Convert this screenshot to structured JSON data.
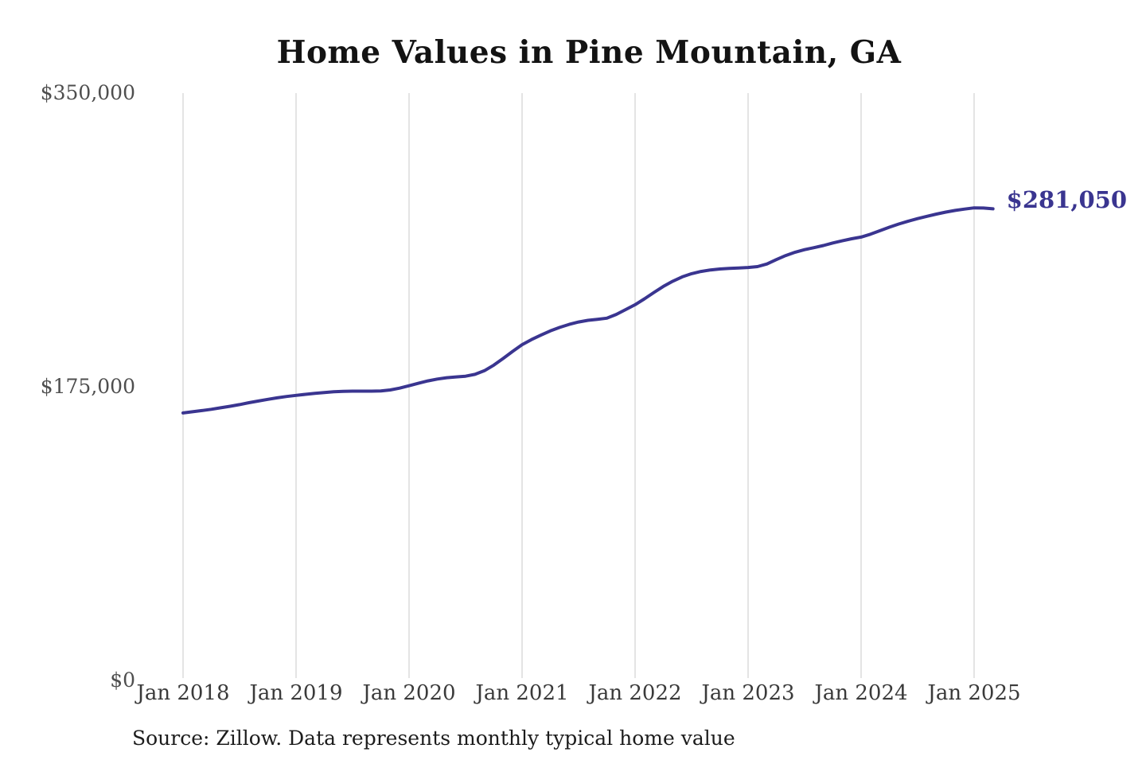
{
  "page": {
    "source_note": "Source: Zillow. Data represents monthly typical home value"
  },
  "chart_data": {
    "type": "line",
    "title": "Home Values in Pine Mountain, GA",
    "xlabel": "",
    "ylabel": "",
    "ylim": [
      0,
      350000
    ],
    "grid": "vertical-only",
    "legend": "none",
    "colors": {
      "line": "#3a3590",
      "gridline": "#c8c8c8",
      "annotation": "#3a3590"
    },
    "y_ticks": [
      {
        "value": 0,
        "label": "$0"
      },
      {
        "value": 175000,
        "label": "$175,000"
      },
      {
        "value": 350000,
        "label": "$350,000"
      }
    ],
    "x_tick_labels": [
      "Jan 2018",
      "Jan 2019",
      "Jan 2020",
      "Jan 2021",
      "Jan 2022",
      "Jan 2023",
      "Jan 2024",
      "Jan 2025"
    ],
    "end_annotation": {
      "label": "$281,050",
      "value": 281050
    },
    "x": [
      "2018-01",
      "2018-02",
      "2018-03",
      "2018-04",
      "2018-05",
      "2018-06",
      "2018-07",
      "2018-08",
      "2018-09",
      "2018-10",
      "2018-11",
      "2018-12",
      "2019-01",
      "2019-02",
      "2019-03",
      "2019-04",
      "2019-05",
      "2019-06",
      "2019-07",
      "2019-08",
      "2019-09",
      "2019-10",
      "2019-11",
      "2019-12",
      "2020-01",
      "2020-02",
      "2020-03",
      "2020-04",
      "2020-05",
      "2020-06",
      "2020-07",
      "2020-08",
      "2020-09",
      "2020-10",
      "2020-11",
      "2020-12",
      "2021-01",
      "2021-02",
      "2021-03",
      "2021-04",
      "2021-05",
      "2021-06",
      "2021-07",
      "2021-08",
      "2021-09",
      "2021-10",
      "2021-11",
      "2021-12",
      "2022-01",
      "2022-02",
      "2022-03",
      "2022-04",
      "2022-05",
      "2022-06",
      "2022-07",
      "2022-08",
      "2022-09",
      "2022-10",
      "2022-11",
      "2022-12",
      "2023-01",
      "2023-02",
      "2023-03",
      "2023-04",
      "2023-05",
      "2023-06",
      "2023-07",
      "2023-08",
      "2023-09",
      "2023-10",
      "2023-11",
      "2023-12",
      "2024-01",
      "2024-02",
      "2024-03",
      "2024-04",
      "2024-05",
      "2024-06",
      "2024-07",
      "2024-08",
      "2024-09",
      "2024-10",
      "2024-11",
      "2024-12",
      "2025-01",
      "2025-02",
      "2025-03"
    ],
    "series": [
      {
        "name": "Monthly typical home value",
        "values": [
          159400,
          160100,
          160800,
          161600,
          162500,
          163400,
          164400,
          165500,
          166500,
          167500,
          168400,
          169200,
          169900,
          170500,
          171100,
          171600,
          172000,
          172300,
          172400,
          172400,
          172400,
          172500,
          173100,
          174200,
          175600,
          177100,
          178500,
          179600,
          180400,
          180900,
          181300,
          182400,
          184600,
          187900,
          191900,
          196100,
          200100,
          203100,
          205800,
          208300,
          210400,
          212200,
          213600,
          214600,
          215200,
          215900,
          218100,
          221000,
          223900,
          227400,
          231200,
          234800,
          237900,
          240500,
          242400,
          243700,
          244600,
          245200,
          245500,
          245800,
          246100,
          246600,
          248200,
          250800,
          253200,
          255200,
          256700,
          257900,
          259200,
          260700,
          262000,
          263200,
          264200,
          265900,
          268000,
          270100,
          272000,
          273700,
          275200,
          276600,
          277900,
          279100,
          280100,
          280900,
          281600,
          281500,
          281050
        ]
      }
    ]
  }
}
